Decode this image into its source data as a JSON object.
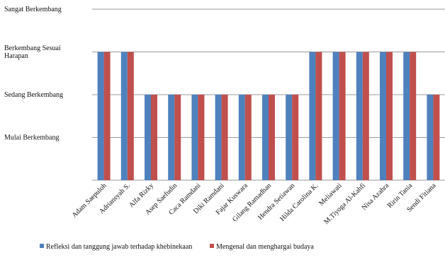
{
  "chart_data": {
    "type": "bar",
    "categories": [
      "Adam Saepuloh",
      "Adriansyah S.",
      "Alfa Rizky",
      "Asep Saefudin",
      "Caca Ramdani",
      "Diki Ramdani",
      "Fajar Kuswara",
      "Gilang Ramadhan",
      "Hendra Setiawan",
      "Hilda Carolina K.",
      "Meliawati",
      "M.Tiyoga Al-Kahfi",
      "Nisa Azahra",
      "Ririn Tania",
      "Sendi Fitiana"
    ],
    "series": [
      {
        "name": "Refleksi dan tanggung jawab terhadap khebinekaan",
        "color": "#4f81bd",
        "values": [
          3,
          3,
          2,
          2,
          2,
          2,
          2,
          2,
          2,
          3,
          3,
          3,
          3,
          3,
          2
        ]
      },
      {
        "name": "Mengenal dan menghargai budaya",
        "color": "#c0504d",
        "values": [
          3,
          3,
          2,
          2,
          2,
          2,
          2,
          2,
          2,
          3,
          3,
          3,
          3,
          3,
          2
        ]
      }
    ],
    "y_tick_labels": [
      "Mulai Berkembang",
      "Sedang Berkembang",
      "Berkembang Sesuai Harapan",
      "Sangat Berkembang"
    ],
    "y_tick_values": [
      1,
      2,
      3,
      4
    ],
    "ylim": [
      0,
      4
    ],
    "grid": true,
    "legend_position": "bottom"
  }
}
